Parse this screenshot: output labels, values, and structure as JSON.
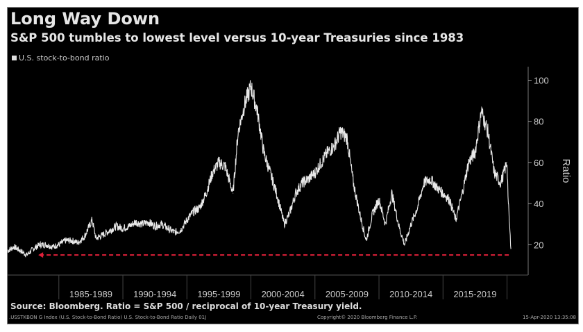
{
  "chart_data": {
    "type": "line",
    "title": "Long Way Down",
    "subtitle": "S&P 500 tumbles to lowest level versus 10-year Treasuries since 1983",
    "legend": "U.S. stock-to-bond ratio",
    "ylabel": "Ratio",
    "ylim": [
      5,
      105
    ],
    "xlim": [
      1981,
      2021
    ],
    "yticks": [
      20,
      40,
      60,
      80,
      100
    ],
    "xtick_labels": [
      "1985-1989",
      "1990-1994",
      "1995-1999",
      "2000-2004",
      "2005-2009",
      "2010-2014",
      "2015-2019"
    ],
    "reference_line": {
      "value": 15,
      "from": 1983.5,
      "to": 2020.3,
      "color": "#e0203a"
    },
    "series": [
      {
        "name": "U.S. stock-to-bond ratio",
        "color": "#e8e8e8",
        "x": [
          1981,
          1981.5,
          1982,
          1982.5,
          1983,
          1983.5,
          1984,
          1984.5,
          1985,
          1985.5,
          1986,
          1986.5,
          1987,
          1987.6,
          1987.9,
          1988.5,
          1989,
          1989.5,
          1990,
          1990.5,
          1991,
          1991.5,
          1992,
          1992.5,
          1993,
          1993.5,
          1994,
          1994.5,
          1995,
          1995.5,
          1996,
          1996.5,
          1997,
          1997.5,
          1998,
          1998.6,
          1999,
          1999.5,
          2000,
          2000.5,
          2001,
          2001.5,
          2002,
          2002.6,
          2003,
          2003.5,
          2004,
          2004.5,
          2005,
          2005.5,
          2006,
          2006.5,
          2007,
          2007.5,
          2008,
          2008.5,
          2009,
          2009.5,
          2010,
          2010.5,
          2011,
          2011.6,
          2012,
          2012.5,
          2013,
          2013.5,
          2014,
          2014.5,
          2015,
          2015.5,
          2016,
          2016.5,
          2017,
          2017.5,
          2018,
          2018.5,
          2019,
          2019.5,
          2020,
          2020.1,
          2020.3
        ],
        "values": [
          17,
          19,
          17,
          15,
          18,
          20,
          20,
          19,
          20,
          22,
          22,
          21,
          24,
          32,
          23,
          25,
          27,
          29,
          28,
          29,
          31,
          30,
          31,
          29,
          30,
          28,
          26,
          27,
          32,
          36,
          38,
          45,
          55,
          60,
          58,
          45,
          75,
          88,
          97,
          85,
          65,
          55,
          45,
          30,
          35,
          45,
          50,
          52,
          55,
          60,
          65,
          68,
          75,
          72,
          50,
          35,
          22,
          35,
          42,
          30,
          45,
          28,
          20,
          30,
          38,
          50,
          52,
          48,
          45,
          42,
          32,
          45,
          60,
          65,
          85,
          75,
          55,
          50,
          60,
          40,
          18
        ]
      }
    ]
  },
  "source": "Source: Bloomberg. Ratio = S&P 500 / reciprocal of 10-year Treasury yield.",
  "footer": {
    "left": ".USSTKBON G Index (U.S. Stock-to-Bond Ratio) U.S. Stock-to-Bond Ratio  Daily 01J",
    "center": "Copyright© 2020 Bloomberg Finance L.P.",
    "right": "15-Apr-2020 13:35:08"
  }
}
